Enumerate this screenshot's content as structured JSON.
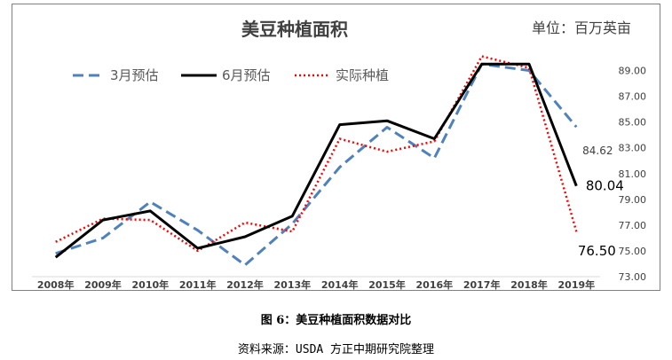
{
  "chart_data": {
    "type": "line",
    "title": "美豆种植面积",
    "unit_label": "单位：百万英亩",
    "categories": [
      "2008年",
      "2009年",
      "2010年",
      "2011年",
      "2012年",
      "2013年",
      "2014年",
      "2015年",
      "2016年",
      "2017年",
      "2018年",
      "2019年"
    ],
    "ylim": [
      73.0,
      90.0
    ],
    "yticks": [
      "73.00",
      "75.00",
      "77.00",
      "79.00",
      "81.00",
      "83.00",
      "85.00",
      "87.00",
      "89.00"
    ],
    "y_axis_position": "right",
    "grid": false,
    "legend_position": "top-left",
    "series": [
      {
        "name": "3月预估",
        "style": "dashed",
        "color": "#4F81BD",
        "values": [
          74.8,
          76.0,
          78.8,
          76.6,
          73.9,
          77.1,
          81.5,
          84.6,
          82.2,
          89.5,
          89.0,
          84.62
        ]
      },
      {
        "name": "6月预估",
        "style": "solid",
        "color": "#000000",
        "values": [
          74.5,
          77.4,
          78.1,
          75.2,
          76.1,
          77.7,
          84.8,
          85.1,
          83.7,
          89.5,
          89.5,
          80.04
        ]
      },
      {
        "name": "实际种植",
        "style": "dotted",
        "color": "#FF0000",
        "values": [
          75.7,
          77.5,
          77.4,
          75.0,
          77.2,
          76.5,
          83.7,
          82.7,
          83.5,
          90.1,
          89.2,
          76.5
        ]
      }
    ],
    "data_labels": [
      {
        "series": 0,
        "index": 11,
        "text": "84.62"
      },
      {
        "series": 1,
        "index": 11,
        "text": "80.04"
      },
      {
        "series": 2,
        "index": 11,
        "text": "76.50"
      }
    ]
  },
  "caption": "图 6：美豆种植面积数据对比",
  "source": "资料来源：USDA 方正中期研究院整理"
}
